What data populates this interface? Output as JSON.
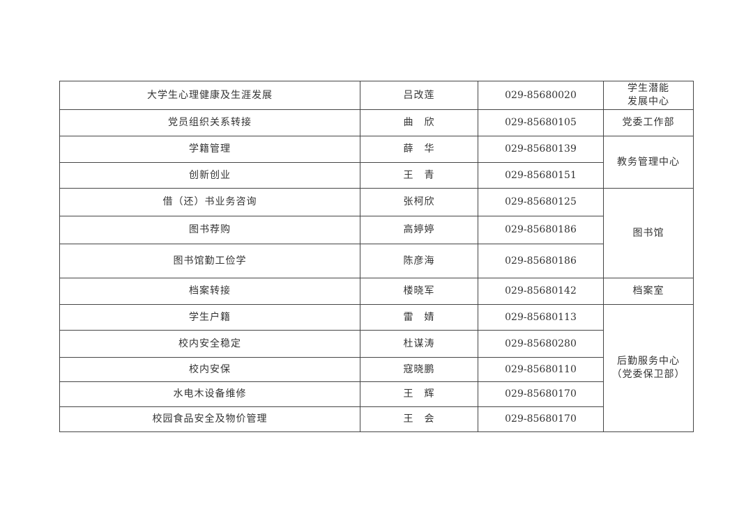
{
  "rows": [
    {
      "service": "大学生心理健康及生涯发展",
      "contact": "吕改莲",
      "phone": "029-85680020"
    },
    {
      "service": "党员组织关系转接",
      "contact": "曲　欣",
      "phone": "029-85680105"
    },
    {
      "service": "学籍管理",
      "contact": "薛　华",
      "phone": "029-85680139"
    },
    {
      "service": "创新创业",
      "contact": "王　青",
      "phone": "029-85680151"
    },
    {
      "service": "借（还）书业务咨询",
      "contact": "张柯欣",
      "phone": "029-85680125"
    },
    {
      "service": "图书荐购",
      "contact": "高婷婷",
      "phone": "029-85680186"
    },
    {
      "service": "图书馆勤工俭学",
      "contact": "陈彦海",
      "phone": "029-85680186"
    },
    {
      "service": "档案转接",
      "contact": "楼晓军",
      "phone": "029-85680142"
    },
    {
      "service": "学生户籍",
      "contact": "雷　婧",
      "phone": "029-85680113"
    },
    {
      "service": "校内安全稳定",
      "contact": "杜谋涛",
      "phone": "029-85680280"
    },
    {
      "service": "校内安保",
      "contact": "寇晓鹏",
      "phone": "029-85680110"
    },
    {
      "service": "水电木设备维修",
      "contact": "王　辉",
      "phone": "029-85680170"
    },
    {
      "service": "校园食品安全及物价管理",
      "contact": "王　会",
      "phone": "029-85680170"
    }
  ],
  "departments": [
    {
      "lines": [
        "学生潜能",
        "发展中心"
      ],
      "span": 1
    },
    {
      "lines": [
        "党委工作部"
      ],
      "span": 1
    },
    {
      "lines": [
        "教务管理中心"
      ],
      "span": 2
    },
    {
      "lines": [
        "图书馆"
      ],
      "span": 3
    },
    {
      "lines": [
        "档案室"
      ],
      "span": 1
    },
    {
      "lines": [
        "后勤服务中心",
        "（党委保卫部）"
      ],
      "span": 5
    }
  ]
}
